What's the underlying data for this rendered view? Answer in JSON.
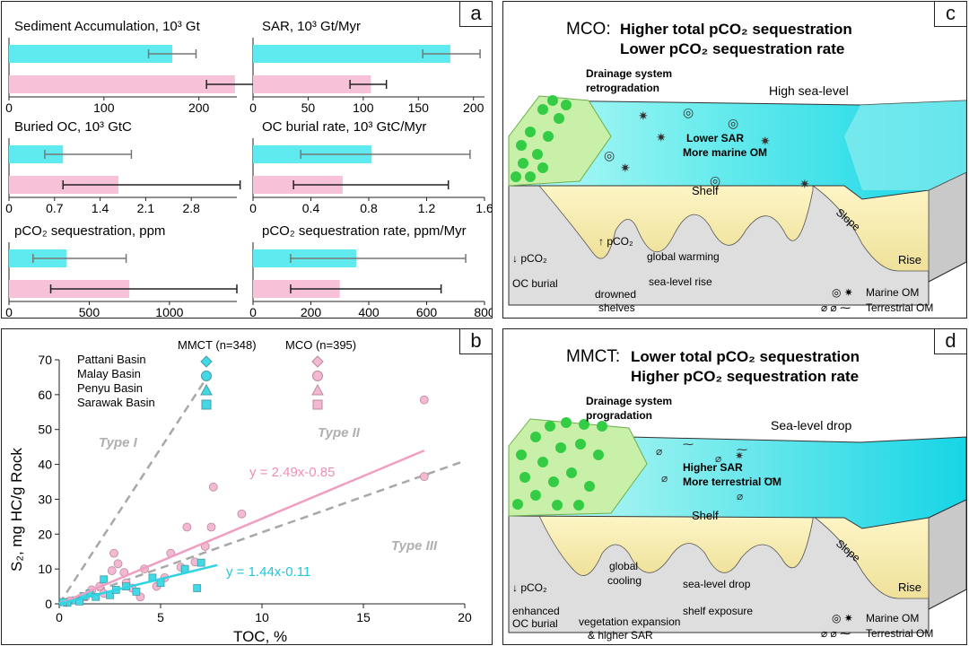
{
  "panel_a": {
    "label": "a",
    "subplots": [
      {
        "title": "Sediment Accumulation, 10³ Gt",
        "ticks": [
          "0",
          "100",
          "200"
        ],
        "xlim": [
          0,
          240
        ],
        "values": [
          {
            "v": 172,
            "lo": 147,
            "hi": 197
          },
          {
            "v": 238,
            "lo": 208,
            "hi": 264
          }
        ]
      },
      {
        "title": "SAR, 10³ Gt/Myr",
        "ticks": [
          "0",
          "50",
          "100",
          "150",
          "200"
        ],
        "xlim": [
          0,
          210
        ],
        "values": [
          {
            "v": 179,
            "lo": 154,
            "hi": 206
          },
          {
            "v": 107,
            "lo": 88,
            "hi": 121
          }
        ]
      },
      {
        "title": "Buried OC, 10³ GtC",
        "ticks": [
          "0",
          "0.7",
          "1.4",
          "2.1",
          "2.8"
        ],
        "xlim": [
          0,
          3.5
        ],
        "values": [
          {
            "v": 0.83,
            "lo": 0.55,
            "hi": 1.88
          },
          {
            "v": 1.68,
            "lo": 0.83,
            "hi": 3.55
          }
        ]
      },
      {
        "title": "OC burial rate, 10³ GtC/Myr",
        "ticks": [
          "0",
          "0.4",
          "0.8",
          "1.2",
          "1.6"
        ],
        "xlim": [
          0,
          1.6
        ],
        "values": [
          {
            "v": 0.82,
            "lo": 0.33,
            "hi": 1.5
          },
          {
            "v": 0.62,
            "lo": 0.28,
            "hi": 1.35
          }
        ]
      },
      {
        "title": "pCO₂ sequestration, ppm",
        "ticks": [
          "0",
          "500",
          "1000"
        ],
        "xlim": [
          0,
          1420
        ],
        "values": [
          {
            "v": 360,
            "lo": 150,
            "hi": 730
          },
          {
            "v": 750,
            "lo": 260,
            "hi": 1420
          }
        ]
      },
      {
        "title": "pCO₂ sequestration rate, ppm/Myr",
        "ticks": [
          "0",
          "200",
          "400",
          "600",
          "800"
        ],
        "xlim": [
          0,
          800
        ],
        "values": [
          {
            "v": 357,
            "lo": 130,
            "hi": 735
          },
          {
            "v": 300,
            "lo": 130,
            "hi": 650
          }
        ]
      }
    ]
  },
  "panel_b": {
    "label": "b",
    "ylabel": "S₂, mg HC/g Rock",
    "xlabel": "TOC, %",
    "legend_header_mmct": "MMCT (n=348)",
    "legend_header_mco": "MCO (n=395)",
    "basins": [
      "Pattani Basin",
      "Malay Basin",
      "Penyu Basin",
      "Sarawak Basin"
    ],
    "type_labels": [
      "Type I",
      "Type II",
      "Type III"
    ],
    "eq_mco": "y = 2.49x-0.85",
    "eq_mmct": "y = 1.44x-0.11",
    "colors": {
      "mmct": "#42d9e6",
      "mco": "#f4b8d0",
      "mco_line": "#ef9fc2",
      "mmct_line": "#2fd3e3",
      "type_line": "#a8a8a8"
    }
  },
  "chart_data": {
    "type": "scatter",
    "xlabel": "TOC, %",
    "ylabel": "S₂, mg HC/g Rock",
    "xlim": [
      0,
      20
    ],
    "ylim": [
      0,
      70
    ],
    "xticks": [
      "0",
      "5",
      "10",
      "15",
      "20"
    ],
    "yticks": [
      "0",
      "10",
      "20",
      "30",
      "40",
      "50",
      "60",
      "70"
    ],
    "series": [
      {
        "name": "MCO",
        "points": [
          [
            18,
            58.5
          ],
          [
            18,
            36.5
          ],
          [
            7.6,
            33.5
          ],
          [
            6.3,
            22
          ],
          [
            7.5,
            22
          ],
          [
            9,
            25.8
          ],
          [
            2.7,
            14.5
          ],
          [
            5.5,
            14.5
          ],
          [
            3.2,
            9
          ],
          [
            2.6,
            9.5
          ],
          [
            4.2,
            10
          ],
          [
            6.7,
            12
          ],
          [
            4.8,
            5
          ],
          [
            7.2,
            16.5
          ],
          [
            1.6,
            4
          ],
          [
            2.2,
            3
          ],
          [
            1.3,
            2
          ],
          [
            3.3,
            6
          ],
          [
            5.2,
            7.5
          ],
          [
            0.5,
            0.8
          ],
          [
            1,
            1.5
          ],
          [
            2.9,
            11.5
          ],
          [
            3.6,
            4.5
          ],
          [
            6,
            10.5
          ],
          [
            2,
            5
          ],
          [
            4,
            2
          ]
        ]
      },
      {
        "name": "MMCT",
        "points": [
          [
            6.2,
            10
          ],
          [
            7,
            11.8
          ],
          [
            6.8,
            4.5
          ],
          [
            5,
            6
          ],
          [
            3.8,
            3.5
          ],
          [
            3.3,
            5
          ],
          [
            2.5,
            2.5
          ],
          [
            1.5,
            3
          ],
          [
            0.8,
            1
          ],
          [
            1.2,
            2.2
          ],
          [
            2.2,
            7
          ],
          [
            4.6,
            7.5
          ],
          [
            0.4,
            0.3
          ],
          [
            1.8,
            2
          ],
          [
            2.8,
            4
          ],
          [
            0.2,
            0.5
          ],
          [
            1,
            0.7
          ]
        ]
      }
    ],
    "fit_lines": [
      {
        "slope": 2.49,
        "intercept": -0.85,
        "x": [
          0,
          18
        ]
      },
      {
        "slope": 1.44,
        "intercept": -0.11,
        "x": [
          0,
          7.8
        ]
      }
    ]
  },
  "panel_c": {
    "label": "c",
    "title_prefix": "MCO:",
    "title_line1": "Higher total pCO₂ sequestration",
    "title_line2": "Lower pCO₂ sequestration rate",
    "drainage": "Drainage system",
    "drainage2": "retrogradation",
    "sea_level": "High sea-level",
    "sar_text": "Lower SAR",
    "om_text": "More marine OM",
    "shelf": "Shelf",
    "slope": "Slope",
    "rise": "Rise",
    "pco2_up": "↑ pCO₂",
    "pco2_down": "↓ pCO₂",
    "global": "global warming",
    "sealevel_change": "sea-level rise",
    "oc_burial": "OC burial",
    "drowned1": "drowned",
    "drowned2": "shelves",
    "marine_om": "Marine OM",
    "terrestrial_om": "Terrestrial OM"
  },
  "panel_d": {
    "label": "d",
    "title_prefix": "MMCT:",
    "title_line1": "Lower total pCO₂ sequestration",
    "title_line2": "Higher pCO₂ sequestration rate",
    "drainage": "Drainage system",
    "drainage2": "progradation",
    "sea_level": "Sea-level drop",
    "sar_text": "Higher SAR",
    "om_text": "More terrestrial OM",
    "shelf": "Shelf",
    "slope": "Slope",
    "rise": "Rise",
    "pco2_down": "↓ pCO₂",
    "global1": "global",
    "global2": "cooling",
    "sealevel_change": "sea-level drop",
    "exposure": "shelf exposure",
    "enhanced1": "enhanced",
    "enhanced2": "OC burial",
    "veg1": "vegetation expansion",
    "veg2": "& higher SAR",
    "marine_om": "Marine OM",
    "terrestrial_om": "Terrestrial OM"
  }
}
